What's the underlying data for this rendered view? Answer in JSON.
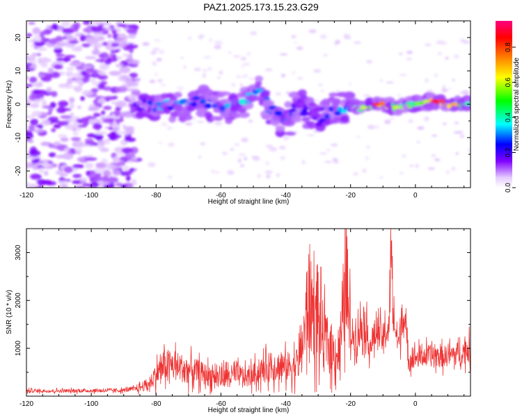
{
  "title": "PAZ1.2025.173.15.23.G29",
  "chart_data": [
    {
      "type": "heatmap",
      "xlabel": "Height of straight line (km)",
      "ylabel": "Frequency (Hz)",
      "xlim": [
        -120,
        17
      ],
      "ylim": [
        -25,
        25
      ],
      "xticks": [
        "-120",
        "-100",
        "-80",
        "-60",
        "-40",
        "-20",
        "0"
      ],
      "yticks": [
        "-20",
        "-10",
        "0",
        "10",
        "20"
      ],
      "colorbar": {
        "label": "Normalized spectral amplitude",
        "range": [
          0,
          0.95
        ],
        "ticks": [
          "0.0",
          "0.2",
          "0.4",
          "0.6",
          "0.8"
        ],
        "colors": [
          "#ffffff",
          "#e6ccff",
          "#8000ff",
          "#0000ff",
          "#00ffff",
          "#00ff00",
          "#ffff00",
          "#ff8000",
          "#ff0000",
          "#ff0080"
        ]
      },
      "ridge": [
        {
          "x": -84,
          "f": 0,
          "a": 0.22
        },
        {
          "x": -78,
          "f": 0,
          "a": 0.35
        },
        {
          "x": -72,
          "f": -1,
          "a": 0.32
        },
        {
          "x": -66,
          "f": 1,
          "a": 0.3
        },
        {
          "x": -60,
          "f": -1,
          "a": 0.3
        },
        {
          "x": -54,
          "f": -1,
          "a": 0.38
        },
        {
          "x": -49,
          "f": 5,
          "a": 0.35
        },
        {
          "x": -44,
          "f": -2,
          "a": 0.3
        },
        {
          "x": -40,
          "f": -6,
          "a": 0.28
        },
        {
          "x": -36,
          "f": 0,
          "a": 0.25
        },
        {
          "x": -30,
          "f": -5,
          "a": 0.22
        },
        {
          "x": -25,
          "f": -1,
          "a": 0.3
        },
        {
          "x": -20,
          "f": -1,
          "a": 0.4
        },
        {
          "x": -16,
          "f": -1,
          "a": 0.55
        },
        {
          "x": -12,
          "f": 0,
          "a": 0.8
        },
        {
          "x": -6,
          "f": -1,
          "a": 0.6
        },
        {
          "x": 0,
          "f": 0,
          "a": 0.5
        },
        {
          "x": 6,
          "f": 1,
          "a": 0.85
        },
        {
          "x": 12,
          "f": 0,
          "a": 0.7
        },
        {
          "x": 16,
          "f": 0,
          "a": 0.4
        }
      ]
    },
    {
      "type": "line",
      "xlabel": "Height of straight line (km)",
      "ylabel": "SNR (10 * v/v)",
      "xlim": [
        -120,
        17
      ],
      "ylim": [
        0,
        3500
      ],
      "xticks": [
        "-120",
        "-100",
        "-80",
        "-60",
        "-40",
        "-20",
        "0"
      ],
      "yticks": [
        "1000",
        "2000",
        "3000"
      ],
      "color": "#ee3333",
      "series": [
        {
          "x": [
            -120,
            -110,
            -100,
            -90,
            -86,
            -82,
            -80,
            -78,
            -76,
            -72,
            -68,
            -64,
            -60,
            -56,
            -52,
            -48,
            -44,
            -40,
            -36,
            -34,
            -33,
            -30,
            -28,
            -26,
            -24,
            -22,
            -21.5,
            -21,
            -20,
            -18,
            -16,
            -14,
            -12,
            -10,
            -8,
            -7.5,
            -7,
            -6,
            -5,
            -4,
            -2,
            0,
            4,
            8,
            12,
            17
          ],
          "y": [
            110,
            110,
            115,
            120,
            160,
            260,
            460,
            620,
            660,
            590,
            520,
            440,
            400,
            440,
            380,
            520,
            640,
            600,
            700,
            1400,
            1950,
            1550,
            1200,
            950,
            900,
            1600,
            3400,
            1900,
            1300,
            1250,
            1600,
            1050,
            1350,
            1200,
            1500,
            3300,
            1800,
            1300,
            1100,
            1850,
            800,
            800,
            850,
            820,
            870,
            980
          ]
        }
      ]
    }
  ]
}
